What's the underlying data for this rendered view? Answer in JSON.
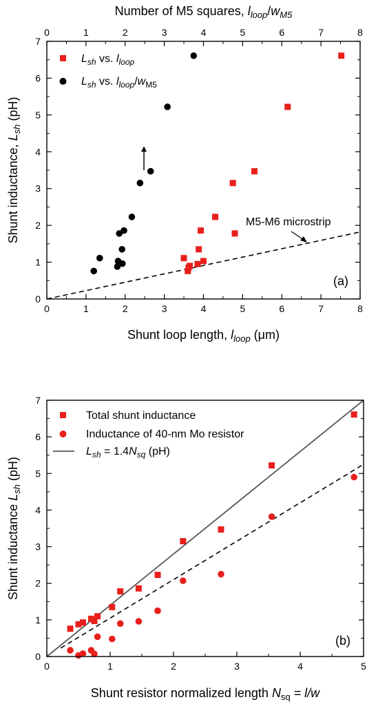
{
  "chart_data": [
    {
      "type": "scatter",
      "panel_label": "(a)",
      "xlabel_prefix": "Shunt loop length, ",
      "xlabel_var": "l",
      "xlabel_sub": "loop",
      "xlabel_unit": " (μm)",
      "ylabel_prefix": "Shunt inductance, ",
      "ylabel_var": "L",
      "ylabel_sub": "sh",
      "ylabel_unit": " (pH)",
      "x2label_prefix": "Number of M5 squares, ",
      "x2label_var": "l",
      "x2label_sub": "loop",
      "x2label_mid": "/",
      "x2label_var2": "w",
      "x2label_sub2": "M5",
      "xlim": [
        0,
        8
      ],
      "x2lim": [
        0,
        8
      ],
      "ylim": [
        0,
        7
      ],
      "xticks": [
        "0",
        "1",
        "2",
        "3",
        "4",
        "5",
        "6",
        "7",
        "8"
      ],
      "x2ticks": [
        "0",
        "1",
        "2",
        "3",
        "4",
        "5",
        "6",
        "7",
        "8"
      ],
      "yticks": [
        "0",
        "1",
        "2",
        "3",
        "4",
        "5",
        "6",
        "7"
      ],
      "legend_position": "top-left",
      "annotation": "M5-M6 microstrip",
      "series": [
        {
          "legend_var": "L",
          "legend_sub": "sh",
          "legend_mid": " vs. ",
          "legend_var2": "l",
          "legend_sub2": "loop",
          "legend_mid2": "",
          "legend_var3": "",
          "legend_sub3": "",
          "marker": "square",
          "color": "#e8201c",
          "x": [
            3.5,
            3.6,
            3.62,
            3.65,
            3.85,
            3.88,
            3.93,
            4.0,
            4.3,
            4.75,
            4.8,
            5.3,
            6.15,
            7.52
          ],
          "y": [
            1.11,
            0.76,
            0.85,
            0.9,
            0.95,
            1.35,
            1.86,
            1.03,
            2.23,
            3.15,
            1.78,
            3.47,
            5.22,
            6.61
          ]
        },
        {
          "legend_var": "L",
          "legend_sub": "sh",
          "legend_mid": " vs. ",
          "legend_var2": "l",
          "legend_sub2": "loop",
          "legend_mid2": "/",
          "legend_var3": "w",
          "legend_sub3": "M5",
          "marker": "circle",
          "color": "#000000",
          "x": [
            1.2,
            1.35,
            1.8,
            1.82,
            1.85,
            1.92,
            1.93,
            1.97,
            2.17,
            2.38,
            2.65,
            3.08,
            3.75
          ],
          "y": [
            0.76,
            1.11,
            0.88,
            1.03,
            1.78,
            1.35,
            0.96,
            1.86,
            2.23,
            3.15,
            3.47,
            5.22,
            6.61
          ]
        }
      ],
      "reference_line": {
        "style": "dashed",
        "color": "#000000",
        "slope": 0.2275,
        "intercept": 0
      },
      "arrow": {
        "x": 2.48,
        "y_from": 3.5,
        "y_to": 4.15
      }
    },
    {
      "type": "scatter",
      "panel_label": "(b)",
      "xlabel_prefix": "Shunt resistor normalized length ",
      "xlabel_var": "N",
      "xlabel_sub": "sq",
      "xlabel_unit": " = l/w",
      "ylabel_prefix": "Shunt inductance ",
      "ylabel_var": "L",
      "ylabel_sub": "sh",
      "ylabel_unit": "  (pH)",
      "xlim": [
        0,
        5
      ],
      "ylim": [
        0,
        7
      ],
      "xticks": [
        "0",
        "1",
        "2",
        "3",
        "4",
        "5"
      ],
      "yticks": [
        "0",
        "1",
        "2",
        "3",
        "4",
        "5",
        "6",
        "7"
      ],
      "legend_position": "top-left",
      "series": [
        {
          "name": "Total shunt inductance",
          "marker": "square",
          "color": "#e8201c",
          "x": [
            0.37,
            0.5,
            0.57,
            0.7,
            0.75,
            0.8,
            1.03,
            1.16,
            1.45,
            1.75,
            2.15,
            2.75,
            3.55,
            4.85
          ],
          "y": [
            0.76,
            0.88,
            0.93,
            1.03,
            0.97,
            1.1,
            1.35,
            1.78,
            1.86,
            2.23,
            3.15,
            3.47,
            5.22,
            6.61
          ]
        },
        {
          "name": "Inductance of 40-nm Mo resistor",
          "marker": "circle",
          "color": "#e8201c",
          "x": [
            0.37,
            0.5,
            0.57,
            0.7,
            0.75,
            0.8,
            1.03,
            1.16,
            1.45,
            1.75,
            2.15,
            2.75,
            3.55,
            4.85
          ],
          "y": [
            0.17,
            0.03,
            0.08,
            0.17,
            0.07,
            0.54,
            0.48,
            0.9,
            0.96,
            1.25,
            2.07,
            2.25,
            3.82,
            4.9
          ]
        }
      ],
      "fit_line": {
        "legend_var": "L",
        "legend_sub": "sh",
        "legend_mid": " = 1.4",
        "legend_var2": "N",
        "legend_sub2": "sq",
        "legend_tail": " (pH)",
        "slope": 1.4,
        "intercept": 0,
        "color": "#555555",
        "style": "solid"
      },
      "dashed_line": {
        "slope": 1.05,
        "intercept": 0,
        "x_start": 0.22,
        "color": "#000000",
        "style": "dashed"
      }
    }
  ]
}
